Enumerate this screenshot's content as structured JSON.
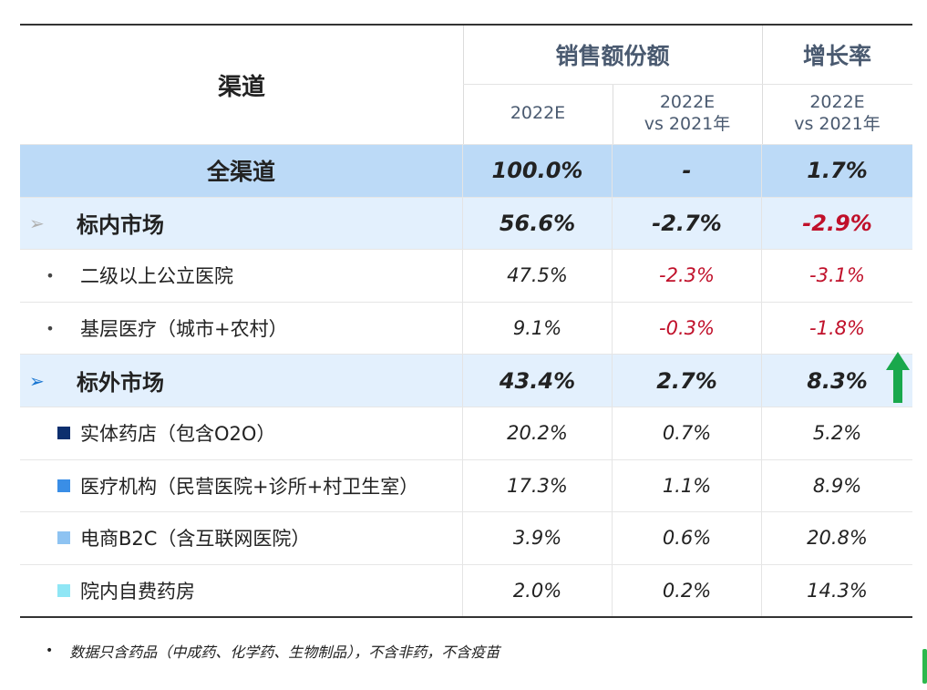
{
  "header": {
    "channel": "渠道",
    "share": "销售额份额",
    "growth": "增长率",
    "sub1": "2022E",
    "sub2_line1": "2022E",
    "sub2_line2": "vs 2021年",
    "sub3_line1": "2022E",
    "sub3_line2": "vs 2021年"
  },
  "rows": [
    {
      "label": "全渠道",
      "share": "100.0%",
      "change": "-",
      "growth": "1.7%"
    },
    {
      "label": "标内市场",
      "share": "56.6%",
      "change": "-2.7%",
      "growth": "-2.9%"
    },
    {
      "label": "二级以上公立医院",
      "share": "47.5%",
      "change": "-2.3%",
      "growth": "-3.1%"
    },
    {
      "label": "基层医疗（城市+农村）",
      "share": "9.1%",
      "change": "-0.3%",
      "growth": "-1.8%"
    },
    {
      "label": "标外市场",
      "share": "43.4%",
      "change": "2.7%",
      "growth": "8.3%"
    },
    {
      "label": "实体药店（包含O2O）",
      "share": "20.2%",
      "change": "0.7%",
      "growth": "5.2%"
    },
    {
      "label": "医疗机构（民营医院+诊所+村卫生室）",
      "share": "17.3%",
      "change": "1.1%",
      "growth": "8.9%"
    },
    {
      "label": "电商B2C（含互联网医院）",
      "share": "3.9%",
      "change": "0.6%",
      "growth": "20.8%"
    },
    {
      "label": "院内自费药房",
      "share": "2.0%",
      "change": "0.2%",
      "growth": "14.3%"
    }
  ],
  "colors": {
    "header_text": "#4a5a70",
    "all_row_bg": "#bcdaf7",
    "section_row_bg": "#e3f0fd",
    "negative": "#c0102a",
    "up_arrow": "#19a84c",
    "sq_1": "#0d2f6e",
    "sq_2": "#3a8ee6",
    "sq_3": "#8ec3f2",
    "sq_4": "#8fe6f5"
  },
  "icons": {
    "section_bullet_1": "triangle-right-gray",
    "section_bullet_2": "triangle-right-blue",
    "growth_indicator": "up-arrow-green"
  },
  "footnote": "数据只含药品（中成药、化学药、生物制品），不含非药，不含疫苗"
}
